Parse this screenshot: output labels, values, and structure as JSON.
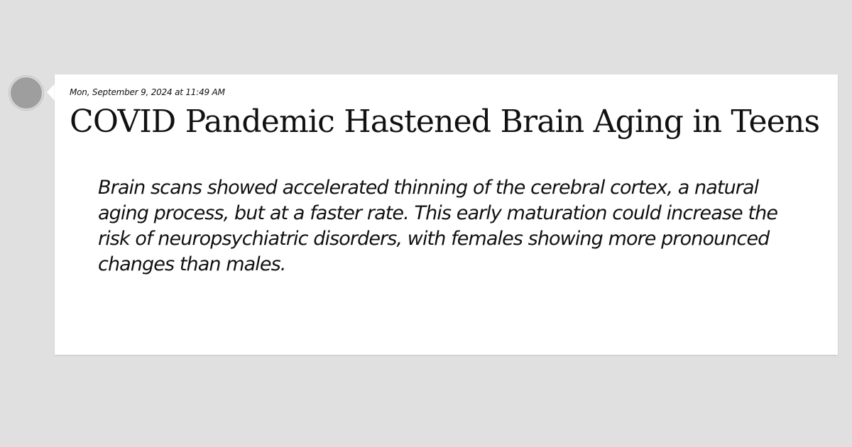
{
  "post": {
    "timestamp": "Mon, September 9, 2024 at 11:49 AM",
    "title": "COVID Pandemic Hastened Brain Aging in Teens",
    "summary": "Brain scans showed accelerated thinning of the cerebral cortex, a natural aging process, but at a faster rate. This early maturation could increase the risk of neuropsychiatric disorders, with females showing more pronounced changes than males."
  },
  "colors": {
    "background": "#e0e0e0",
    "card": "#ffffff",
    "text": "#111111",
    "avatar": "#9e9e9e"
  }
}
